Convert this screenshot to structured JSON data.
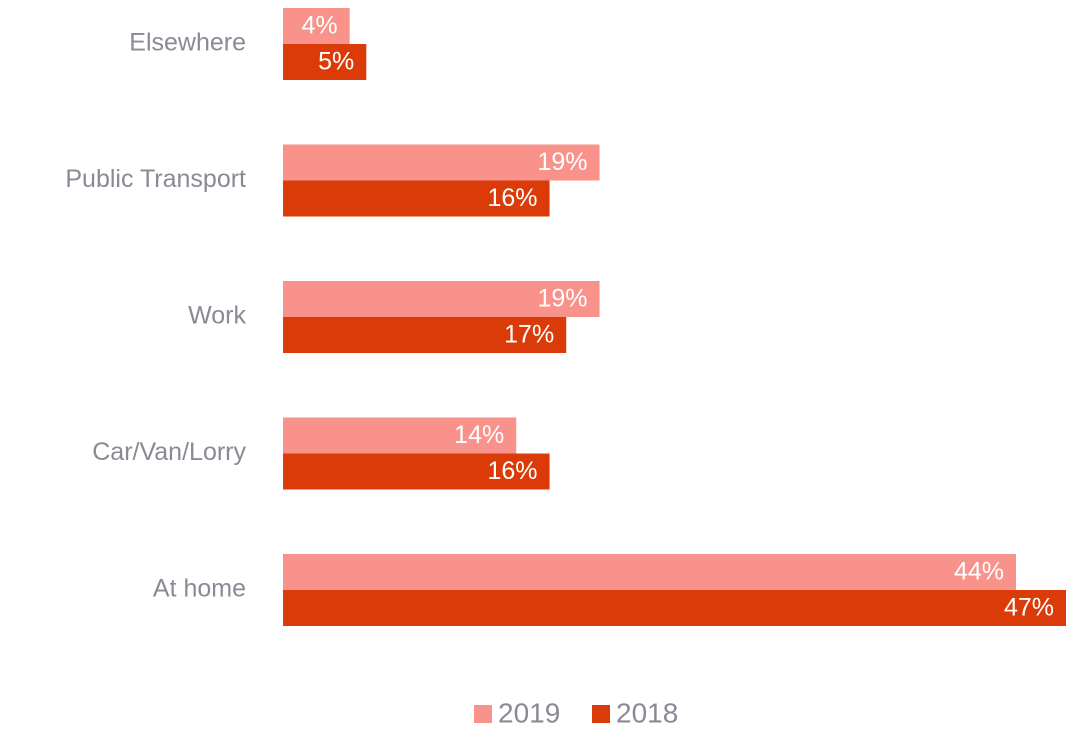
{
  "chart_data": {
    "type": "barh",
    "categories": [
      "Elsewhere",
      "Public Transport",
      "Work",
      "Car/Van/Lorry",
      "At home"
    ],
    "series": [
      {
        "name": "2019",
        "color": "#f8928a",
        "values": [
          4,
          19,
          19,
          14,
          44
        ],
        "value_labels": [
          "4%",
          "19%",
          "19%",
          "14%",
          "44%"
        ]
      },
      {
        "name": "2018",
        "color": "#db3b08",
        "values": [
          5,
          16,
          17,
          16,
          47
        ],
        "value_labels": [
          "5%",
          "16%",
          "17%",
          "16%",
          "47%"
        ]
      }
    ],
    "legend": "bottom"
  }
}
